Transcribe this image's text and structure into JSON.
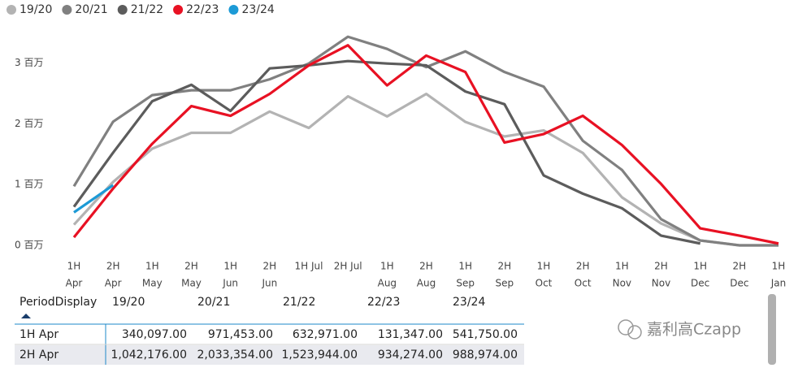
{
  "chart_data": {
    "type": "line",
    "categories": [
      [
        "1H",
        "Apr"
      ],
      [
        "2H",
        "Apr"
      ],
      [
        "1H",
        "May"
      ],
      [
        "2H",
        "May"
      ],
      [
        "1H",
        "Jun"
      ],
      [
        "2H",
        "Jun"
      ],
      [
        "1H Jul"
      ],
      [
        "2H Jul"
      ],
      [
        "1H",
        "Aug"
      ],
      [
        "2H",
        "Aug"
      ],
      [
        "1H",
        "Sep"
      ],
      [
        "2H",
        "Sep"
      ],
      [
        "1H",
        "Oct"
      ],
      [
        "2H",
        "Oct"
      ],
      [
        "1H",
        "Nov"
      ],
      [
        "2H",
        "Nov"
      ],
      [
        "1H",
        "Dec"
      ],
      [
        "2H",
        "Dec"
      ],
      [
        "1H",
        "Jan"
      ]
    ],
    "series": [
      {
        "name": "19/20",
        "color": "#b3b3b3",
        "values": [
          340097,
          1042176,
          1590000,
          1850000,
          1850000,
          2200000,
          1930000,
          2450000,
          2120000,
          2490000,
          2030000,
          1790000,
          1890000,
          1520000,
          790000,
          360000,
          80000,
          0,
          0
        ]
      },
      {
        "name": "20/21",
        "color": "#808080",
        "values": [
          971453,
          2033354,
          2470000,
          2550000,
          2550000,
          2730000,
          2990000,
          3430000,
          3230000,
          2930000,
          3190000,
          2850000,
          2610000,
          1720000,
          1240000,
          430000,
          80000,
          0,
          0
        ]
      },
      {
        "name": "21/22",
        "color": "#5c5c5c",
        "values": [
          632971,
          1523944,
          2370000,
          2640000,
          2210000,
          2910000,
          2960000,
          3030000,
          2990000,
          2960000,
          2530000,
          2320000,
          1150000,
          850000,
          610000,
          160000,
          30000,
          null,
          null
        ]
      },
      {
        "name": "22/23",
        "color": "#e81123",
        "values": [
          131347,
          934274,
          1670000,
          2290000,
          2130000,
          2490000,
          2960000,
          3290000,
          2630000,
          3120000,
          2850000,
          1690000,
          1830000,
          2130000,
          1650000,
          1010000,
          280000,
          160000,
          30000
        ]
      },
      {
        "name": "23/24",
        "color": "#1c9ad6",
        "values": [
          541750,
          988974,
          null,
          null,
          null,
          null,
          null,
          null,
          null,
          null,
          null,
          null,
          null,
          null,
          null,
          null,
          null,
          null,
          null
        ]
      }
    ],
    "ylim": [
      0,
      3500000
    ],
    "yticks": [
      {
        "value": 0,
        "label": "0 百万"
      },
      {
        "value": 1000000,
        "label": "1 百万"
      },
      {
        "value": 2000000,
        "label": "2 百万"
      },
      {
        "value": 3000000,
        "label": "3 百万"
      }
    ],
    "legend": "top-left"
  },
  "table": {
    "columns": [
      "PeriodDisplay",
      "19/20",
      "20/21",
      "21/22",
      "22/23",
      "23/24"
    ],
    "rows": [
      [
        "1H Apr",
        "340,097.00",
        "971,453.00",
        "632,971.00",
        "131,347.00",
        "541,750.00"
      ],
      [
        "2H Apr",
        "1,042,176.00",
        "2,033,354.00",
        "1,523,944.00",
        "934,274.00",
        "988,974.00"
      ]
    ]
  },
  "watermark": "嘉利高Czapp"
}
